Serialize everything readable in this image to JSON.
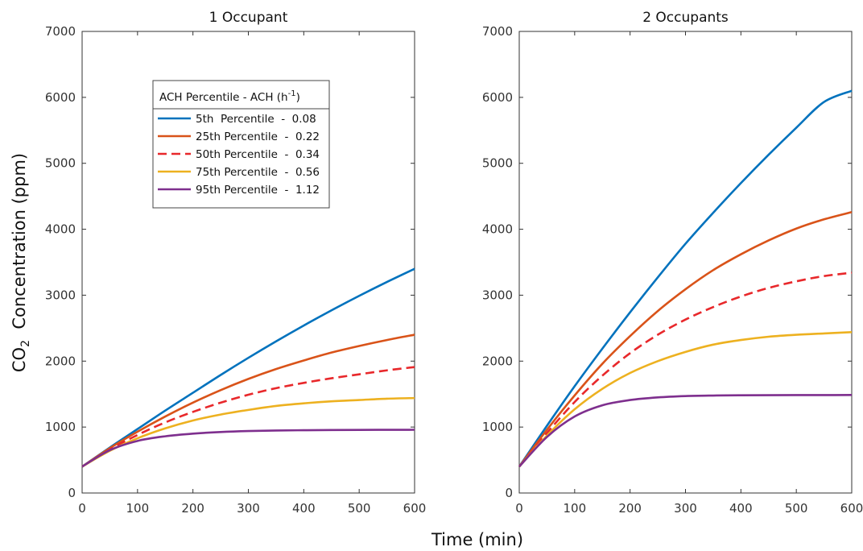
{
  "chart_data": [
    {
      "type": "line",
      "title": "1 Occupant",
      "xlabel": "Time (min)",
      "ylabel_main": "CO",
      "ylabel_sub": "2",
      "ylabel_rest": "  Concentration (ppm)",
      "xlim": [
        0,
        600
      ],
      "ylim": [
        0,
        7000
      ],
      "xticks": [
        "0",
        "100",
        "200",
        "300",
        "400",
        "500",
        "600"
      ],
      "yticks": [
        "0",
        "1000",
        "2000",
        "3000",
        "4000",
        "5000",
        "6000",
        "7000"
      ],
      "grid": false,
      "legend": {
        "placement": "upper-left",
        "header_main": "ACH Percentile - ACH (h",
        "header_sup": "-1",
        "header_end": ")"
      },
      "x": [
        0,
        50,
        100,
        150,
        200,
        250,
        300,
        350,
        400,
        450,
        500,
        550,
        600
      ],
      "series": [
        {
          "name": "5th  Percentile  -  0.08",
          "color": "#0072BD",
          "dash": false,
          "values": [
            400,
            690,
            970,
            1250,
            1520,
            1790,
            2050,
            2300,
            2540,
            2770,
            2990,
            3200,
            3400
          ]
        },
        {
          "name": "25th Percentile  -  0.22",
          "color": "#D95319",
          "dash": false,
          "values": [
            400,
            680,
            930,
            1160,
            1370,
            1560,
            1730,
            1880,
            2010,
            2130,
            2230,
            2320,
            2400
          ]
        },
        {
          "name": "50th Percentile  -  0.34",
          "color": "#E8282B",
          "dash": true,
          "values": [
            400,
            660,
            880,
            1070,
            1230,
            1370,
            1490,
            1590,
            1670,
            1740,
            1800,
            1860,
            1910
          ]
        },
        {
          "name": "75th Percentile  -  0.56",
          "color": "#EDB120",
          "dash": false,
          "values": [
            400,
            640,
            830,
            980,
            1100,
            1190,
            1260,
            1320,
            1360,
            1390,
            1410,
            1430,
            1440
          ]
        },
        {
          "name": "95th Percentile  -  1.12",
          "color": "#7E2F8E",
          "dash": false,
          "values": [
            400,
            650,
            790,
            860,
            900,
            925,
            940,
            948,
            952,
            955,
            957,
            958,
            959
          ]
        }
      ]
    },
    {
      "type": "line",
      "title": "2 Occupants",
      "xlim": [
        0,
        600
      ],
      "ylim": [
        0,
        7000
      ],
      "xticks": [
        "0",
        "100",
        "200",
        "300",
        "400",
        "500",
        "600"
      ],
      "yticks": [
        "0",
        "1000",
        "2000",
        "3000",
        "4000",
        "5000",
        "6000",
        "7000"
      ],
      "grid": false,
      "x": [
        0,
        50,
        100,
        150,
        200,
        250,
        300,
        350,
        400,
        450,
        500,
        550,
        600
      ],
      "series": [
        {
          "color": "#0072BD",
          "dash": false,
          "values": [
            400,
            1020,
            1620,
            2190,
            2740,
            3270,
            3780,
            4250,
            4700,
            5130,
            5540,
            5930,
            6100
          ]
        },
        {
          "color": "#D95319",
          "dash": false,
          "values": [
            400,
            960,
            1480,
            1960,
            2380,
            2760,
            3090,
            3380,
            3620,
            3830,
            4010,
            4150,
            4260
          ]
        },
        {
          "color": "#E8282B",
          "dash": true,
          "values": [
            400,
            910,
            1380,
            1780,
            2120,
            2400,
            2630,
            2820,
            2980,
            3110,
            3210,
            3290,
            3340
          ]
        },
        {
          "color": "#EDB120",
          "dash": false,
          "values": [
            400,
            870,
            1270,
            1580,
            1820,
            2000,
            2140,
            2250,
            2320,
            2370,
            2400,
            2420,
            2440
          ]
        },
        {
          "color": "#7E2F8E",
          "dash": false,
          "values": [
            400,
            850,
            1160,
            1330,
            1410,
            1450,
            1470,
            1478,
            1482,
            1484,
            1485,
            1485,
            1486
          ]
        }
      ]
    }
  ]
}
